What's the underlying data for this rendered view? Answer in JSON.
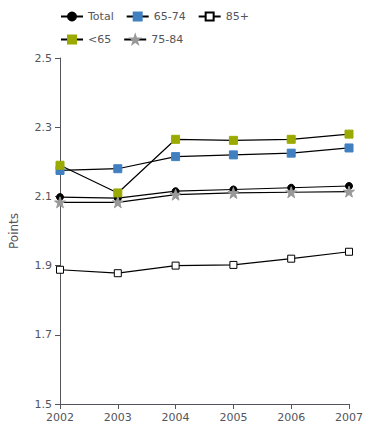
{
  "chart_data": {
    "type": "line",
    "categories": [
      "2002",
      "2003",
      "2004",
      "2005",
      "2006",
      "2007"
    ],
    "color": "#000000",
    "series": [
      {
        "name": "Total",
        "color": "#000000",
        "marker": "circle",
        "values": [
          2.098,
          2.095,
          2.115,
          2.12,
          2.125,
          2.13
        ]
      },
      {
        "name": "65-74",
        "color": "#4080c0",
        "marker": "square",
        "values": [
          2.175,
          2.18,
          2.215,
          2.22,
          2.225,
          2.24
        ]
      },
      {
        "name": "85+",
        "color": "#000000",
        "marker": "open_square",
        "values": [
          1.888,
          1.878,
          1.9,
          1.902,
          1.92,
          1.94
        ]
      },
      {
        "name": "<65",
        "color": "#9aaa00",
        "marker": "square",
        "values": [
          2.19,
          2.11,
          2.265,
          2.262,
          2.265,
          2.28
        ]
      },
      {
        "name": "75-84",
        "color": "#999999",
        "marker": "star",
        "values": [
          2.083,
          2.083,
          2.105,
          2.11,
          2.112,
          2.114
        ]
      }
    ],
    "ylabel": "Points",
    "ylim": [
      1.5,
      2.5
    ],
    "yticks": [
      1.5,
      1.7,
      1.9,
      2.1,
      2.3,
      2.5
    ],
    "grid": false,
    "legend": "upper left"
  }
}
